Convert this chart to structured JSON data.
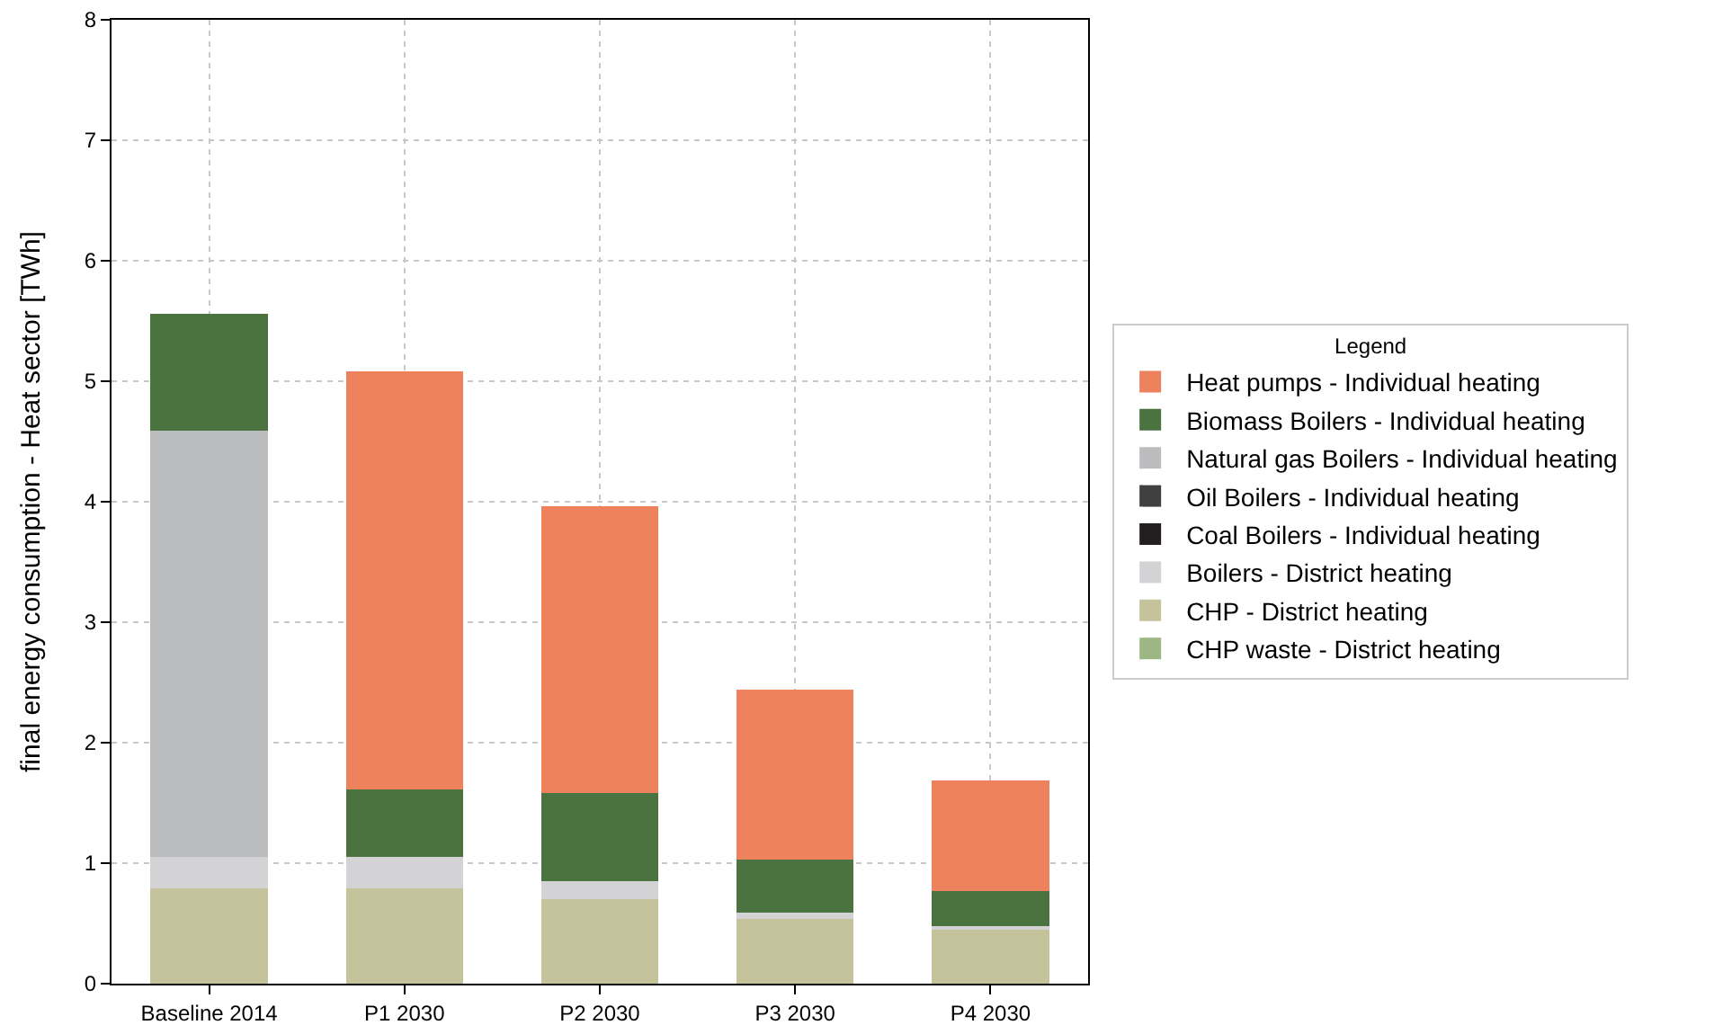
{
  "chart_data": {
    "type": "bar",
    "stacked": true,
    "ylabel": "final energy consumption - Heat sector [TWh]",
    "legend_title": "Legend",
    "legend": "right",
    "grid": true,
    "categories": [
      "Baseline 2014",
      "P1 2030",
      "P2 2030",
      "P3 2030",
      "P4 2030"
    ],
    "ylim": [
      0,
      8
    ],
    "yticks": [
      0,
      1,
      2,
      3,
      4,
      5,
      6,
      7,
      8
    ],
    "series": [
      {
        "name": "CHP waste - District heating",
        "color": "#9cb784",
        "values": [
          0,
          0,
          0,
          0,
          0
        ]
      },
      {
        "name": "CHP - District heating",
        "color": "#c4c39b",
        "values": [
          0.79,
          0.79,
          0.7,
          0.54,
          0.46
        ]
      },
      {
        "name": "Boilers - District heating",
        "color": "#d3d3d5",
        "values": [
          0.26,
          0.26,
          0.15,
          0.05,
          0.02
        ]
      },
      {
        "name": "Coal Boilers - Individual heating",
        "color": "#231f20",
        "values": [
          0,
          0,
          0,
          0,
          0
        ]
      },
      {
        "name": "Oil Boilers - Individual heating",
        "color": "#404040",
        "values": [
          0,
          0,
          0,
          0,
          0
        ]
      },
      {
        "name": "Natural gas Boilers - Individual heating",
        "color": "#bbbcbe",
        "values": [
          3.54,
          0,
          0,
          0,
          0
        ]
      },
      {
        "name": "Biomass Boilers - Individual heating",
        "color": "#4a7340",
        "values": [
          0.97,
          0.56,
          0.73,
          0.44,
          0.29
        ]
      },
      {
        "name": "Heat pumps - Individual heating",
        "color": "#ed825c",
        "values": [
          0,
          3.47,
          2.38,
          1.41,
          0.92
        ]
      }
    ]
  }
}
